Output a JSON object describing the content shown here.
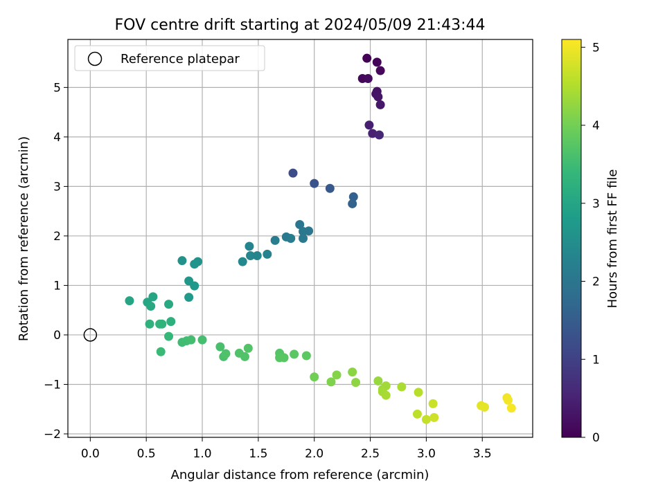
{
  "chart_data": {
    "type": "scatter",
    "title": "FOV centre drift starting at 2024/05/09 21:43:44",
    "xlabel": "Angular distance from reference (arcmin)",
    "ylabel": "Rotation from reference (arcmin)",
    "xlim": [
      -0.2,
      3.95
    ],
    "ylim": [
      -2.07,
      5.97
    ],
    "xticks": [
      0.0,
      0.5,
      1.0,
      1.5,
      2.0,
      2.5,
      3.0,
      3.5
    ],
    "xtick_labels": [
      "0.0",
      "0.5",
      "1.0",
      "1.5",
      "2.0",
      "2.5",
      "3.0",
      "3.5"
    ],
    "yticks": [
      -2,
      -1,
      0,
      1,
      2,
      3,
      4,
      5
    ],
    "ytick_labels": [
      "−2",
      "−1",
      "0",
      "1",
      "2",
      "3",
      "4",
      "5"
    ],
    "grid": true,
    "legend": {
      "position": "top-left",
      "entries": [
        "Reference platepar"
      ]
    },
    "reference_point": {
      "x": 0.0,
      "y": 0.0,
      "marker": "open-circle"
    },
    "colorbar": {
      "label": "Hours from first FF file",
      "colormap": "viridis",
      "range": [
        0,
        5.1
      ],
      "ticks": [
        0,
        1,
        2,
        3,
        4,
        5
      ],
      "tick_labels": [
        "0",
        "1",
        "2",
        "3",
        "4",
        "5"
      ],
      "colors": [
        "#440154",
        "#482777",
        "#3e4989",
        "#31688e",
        "#26828e",
        "#1f9e89",
        "#35b779",
        "#6ece58",
        "#b5de2b",
        "#fde725"
      ]
    },
    "series": [
      {
        "points": [
          {
            "x": 2.47,
            "y": 5.59,
            "h": 0.02
          },
          {
            "x": 2.56,
            "y": 5.51,
            "h": 0.06
          },
          {
            "x": 2.59,
            "y": 5.34,
            "h": 0.1
          },
          {
            "x": 2.43,
            "y": 5.18,
            "h": 0.12
          },
          {
            "x": 2.48,
            "y": 5.18,
            "h": 0.15
          },
          {
            "x": 2.56,
            "y": 4.92,
            "h": 0.25
          },
          {
            "x": 2.55,
            "y": 4.87,
            "h": 0.28
          },
          {
            "x": 2.57,
            "y": 4.81,
            "h": 0.3
          },
          {
            "x": 2.59,
            "y": 4.65,
            "h": 0.35
          },
          {
            "x": 2.49,
            "y": 4.24,
            "h": 0.45
          },
          {
            "x": 2.52,
            "y": 4.07,
            "h": 0.5
          },
          {
            "x": 2.58,
            "y": 4.04,
            "h": 0.55
          },
          {
            "x": 1.81,
            "y": 3.27,
            "h": 1.2
          },
          {
            "x": 2.0,
            "y": 3.06,
            "h": 1.3
          },
          {
            "x": 2.14,
            "y": 2.96,
            "h": 1.4
          },
          {
            "x": 2.35,
            "y": 2.79,
            "h": 1.55
          },
          {
            "x": 2.34,
            "y": 2.65,
            "h": 1.6
          },
          {
            "x": 1.87,
            "y": 2.23,
            "h": 2.0
          },
          {
            "x": 1.9,
            "y": 2.09,
            "h": 2.05
          },
          {
            "x": 1.95,
            "y": 2.1,
            "h": 2.02
          },
          {
            "x": 1.75,
            "y": 1.98,
            "h": 2.1
          },
          {
            "x": 1.79,
            "y": 1.95,
            "h": 2.12
          },
          {
            "x": 1.65,
            "y": 1.91,
            "h": 2.15
          },
          {
            "x": 1.9,
            "y": 1.95,
            "h": 2.08
          },
          {
            "x": 1.42,
            "y": 1.79,
            "h": 2.3
          },
          {
            "x": 1.43,
            "y": 1.6,
            "h": 2.35
          },
          {
            "x": 1.49,
            "y": 1.6,
            "h": 2.33
          },
          {
            "x": 1.58,
            "y": 1.63,
            "h": 2.28
          },
          {
            "x": 1.36,
            "y": 1.48,
            "h": 2.4
          },
          {
            "x": 0.82,
            "y": 1.5,
            "h": 2.6
          },
          {
            "x": 0.96,
            "y": 1.48,
            "h": 2.62
          },
          {
            "x": 0.93,
            "y": 1.43,
            "h": 2.65
          },
          {
            "x": 0.88,
            "y": 1.09,
            "h": 2.7
          },
          {
            "x": 0.93,
            "y": 0.99,
            "h": 2.72
          },
          {
            "x": 0.88,
            "y": 0.76,
            "h": 2.75
          },
          {
            "x": 0.35,
            "y": 0.69,
            "h": 3.0
          },
          {
            "x": 0.51,
            "y": 0.66,
            "h": 3.02
          },
          {
            "x": 0.56,
            "y": 0.77,
            "h": 3.0
          },
          {
            "x": 0.54,
            "y": 0.58,
            "h": 3.05
          },
          {
            "x": 0.7,
            "y": 0.62,
            "h": 3.08
          },
          {
            "x": 0.53,
            "y": 0.22,
            "h": 3.25
          },
          {
            "x": 0.62,
            "y": 0.22,
            "h": 3.3
          },
          {
            "x": 0.64,
            "y": 0.22,
            "h": 3.28
          },
          {
            "x": 0.72,
            "y": 0.27,
            "h": 3.22
          },
          {
            "x": 0.7,
            "y": -0.03,
            "h": 3.4
          },
          {
            "x": 0.63,
            "y": -0.34,
            "h": 3.45
          },
          {
            "x": 0.82,
            "y": -0.15,
            "h": 3.5
          },
          {
            "x": 0.86,
            "y": -0.12,
            "h": 3.52
          },
          {
            "x": 0.9,
            "y": -0.1,
            "h": 3.55
          },
          {
            "x": 1.0,
            "y": -0.1,
            "h": 3.58
          },
          {
            "x": 1.16,
            "y": -0.24,
            "h": 3.6
          },
          {
            "x": 1.19,
            "y": -0.44,
            "h": 3.62
          },
          {
            "x": 1.21,
            "y": -0.38,
            "h": 3.65
          },
          {
            "x": 1.33,
            "y": -0.37,
            "h": 3.67
          },
          {
            "x": 1.38,
            "y": -0.44,
            "h": 3.68
          },
          {
            "x": 1.41,
            "y": -0.27,
            "h": 3.7
          },
          {
            "x": 1.69,
            "y": -0.37,
            "h": 3.72
          },
          {
            "x": 1.69,
            "y": -0.46,
            "h": 3.75
          },
          {
            "x": 1.73,
            "y": -0.46,
            "h": 3.76
          },
          {
            "x": 1.82,
            "y": -0.39,
            "h": 3.78
          },
          {
            "x": 1.93,
            "y": -0.42,
            "h": 3.8
          },
          {
            "x": 2.0,
            "y": -0.85,
            "h": 4.0
          },
          {
            "x": 2.15,
            "y": -0.95,
            "h": 4.1
          },
          {
            "x": 2.2,
            "y": -0.81,
            "h": 4.15
          },
          {
            "x": 2.34,
            "y": -0.75,
            "h": 4.2
          },
          {
            "x": 2.37,
            "y": -0.96,
            "h": 4.22
          },
          {
            "x": 2.57,
            "y": -0.93,
            "h": 4.3
          },
          {
            "x": 2.61,
            "y": -1.1,
            "h": 4.35
          },
          {
            "x": 2.64,
            "y": -1.03,
            "h": 4.37
          },
          {
            "x": 2.61,
            "y": -1.15,
            "h": 4.4
          },
          {
            "x": 2.64,
            "y": -1.22,
            "h": 4.42
          },
          {
            "x": 2.78,
            "y": -1.05,
            "h": 4.45
          },
          {
            "x": 2.93,
            "y": -1.16,
            "h": 4.55
          },
          {
            "x": 2.92,
            "y": -1.6,
            "h": 4.6
          },
          {
            "x": 3.0,
            "y": -1.71,
            "h": 4.65
          },
          {
            "x": 3.06,
            "y": -1.39,
            "h": 4.7
          },
          {
            "x": 3.07,
            "y": -1.67,
            "h": 4.72
          },
          {
            "x": 3.49,
            "y": -1.43,
            "h": 4.9
          },
          {
            "x": 3.52,
            "y": -1.46,
            "h": 4.92
          },
          {
            "x": 3.72,
            "y": -1.27,
            "h": 5.0
          },
          {
            "x": 3.73,
            "y": -1.32,
            "h": 5.02
          },
          {
            "x": 3.76,
            "y": -1.48,
            "h": 5.05
          }
        ]
      }
    ]
  }
}
